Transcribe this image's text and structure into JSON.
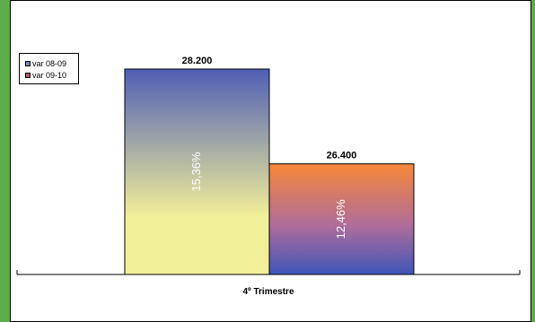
{
  "frame": {
    "border_color": "#5cad4c"
  },
  "chart_data": {
    "type": "bar",
    "title": "",
    "xlabel": "",
    "ylabel": "",
    "categories": [
      "4º Trimestre"
    ],
    "series": [
      {
        "name": "var 08-09",
        "values": [
          28200
        ],
        "value_label": "28.200",
        "bar_label": "15,36%",
        "swatch_color": "#7b86c4",
        "gradient": [
          "#4f5fb5",
          "#f2ef99"
        ]
      },
      {
        "name": "var 09-10",
        "values": [
          26400
        ],
        "value_label": "26.400",
        "bar_label": "12,46%",
        "swatch_color": "#b45b6b",
        "gradient": [
          "#f7883a",
          "#3f55b8"
        ]
      }
    ],
    "legend_position": "top-left",
    "grid": false
  }
}
